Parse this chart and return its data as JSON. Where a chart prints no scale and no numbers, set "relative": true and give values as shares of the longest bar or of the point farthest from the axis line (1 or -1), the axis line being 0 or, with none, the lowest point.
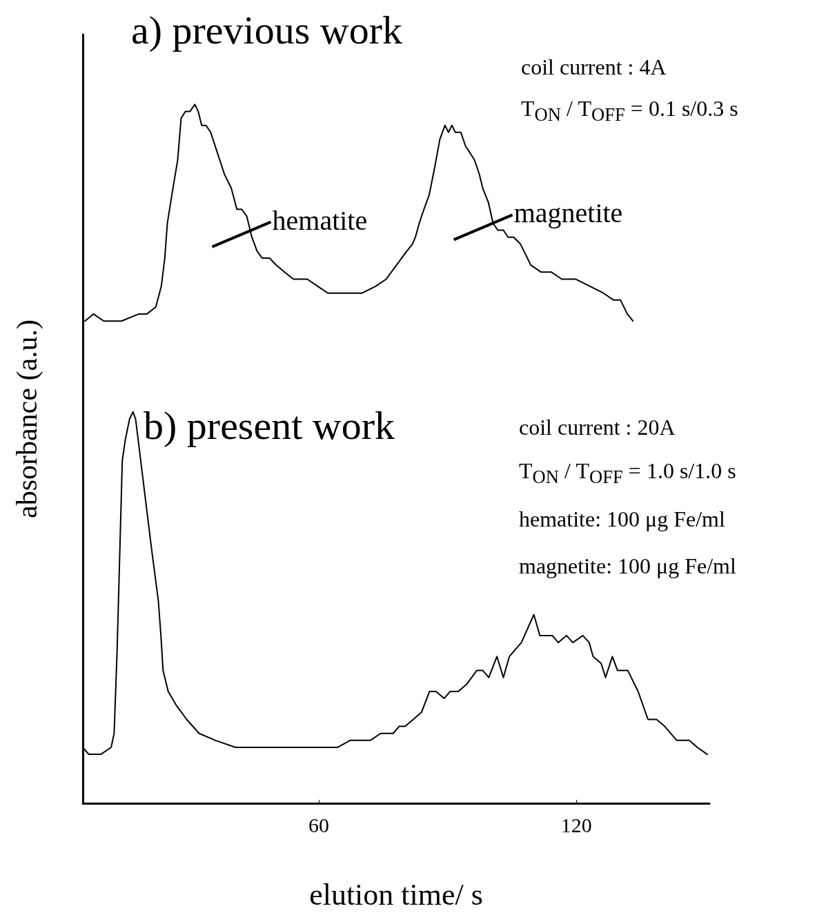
{
  "chart_data": {
    "type": "line",
    "relative": true,
    "xlabel": "elution time/ s",
    "ylabel": "absorbance (a.u.)",
    "xlim": [
      5,
      151
    ],
    "xticks": [
      60,
      120
    ],
    "tick_labels": "x",
    "grid": false,
    "marker": "none",
    "line_style": "solid",
    "annotations": [
      "a) previous work",
      "coil current : 4A",
      "T$_{ON}$ / T$_{OFF}$ = 0.1 s/0.3 s",
      "b) present work",
      "coil current : 20A",
      "T$_{ON}$ / T$_{OFF}$ = 1.0 s/1.0 s",
      "hematite: 100 μg Fe/ml",
      "magnetite: 100 μg Fe/ml",
      {
        "text": "hematite",
        "x": 44.8,
        "y": 0.82
      },
      {
        "text": "magnetite",
        "x": 101.1,
        "y": 0.83
      }
    ],
    "series": [
      {
        "color": "#000000",
        "x": [
          5.5,
          7.5,
          9.9,
          14.0,
          18.0,
          19.9,
          22.0,
          23.3,
          24.1,
          24.7,
          26.0,
          27.1,
          27.9,
          28.9,
          30.0,
          31.1,
          31.9,
          32.7,
          33.7,
          34.8,
          36.4,
          38.0,
          39.6,
          40.9,
          42.0,
          43.2,
          44.4,
          45.6,
          46.8,
          48.5,
          50.1,
          52.0,
          54.1,
          55.7,
          57.3,
          59.7,
          62.1,
          64.5,
          66.1,
          67.7,
          70.1,
          73.3,
          75.7,
          78.1,
          80.5,
          81.8,
          82.5,
          83.4,
          84.5,
          85.7,
          87.0,
          88.2,
          89.4,
          90.2,
          91.0,
          91.8,
          93.1,
          94.2,
          95.3,
          96.3,
          97.4,
          98.2,
          99.5,
          100.6,
          101.7,
          103.0,
          104.1,
          105.4,
          107.0,
          109.4,
          111.8,
          114.2,
          116.6,
          119.8,
          123.1,
          126.3,
          128.7,
          130.3,
          131.9,
          133.2
        ],
        "values": [
          0.69,
          0.7,
          0.69,
          0.69,
          0.7,
          0.7,
          0.71,
          0.74,
          0.78,
          0.83,
          0.88,
          0.92,
          0.98,
          0.99,
          0.99,
          1.0,
          0.99,
          0.97,
          0.97,
          0.96,
          0.93,
          0.9,
          0.88,
          0.85,
          0.85,
          0.84,
          0.81,
          0.79,
          0.78,
          0.78,
          0.77,
          0.76,
          0.75,
          0.75,
          0.75,
          0.74,
          0.73,
          0.73,
          0.73,
          0.73,
          0.73,
          0.74,
          0.75,
          0.77,
          0.79,
          0.8,
          0.81,
          0.83,
          0.85,
          0.87,
          0.91,
          0.95,
          0.97,
          0.96,
          0.97,
          0.96,
          0.96,
          0.94,
          0.93,
          0.92,
          0.9,
          0.88,
          0.86,
          0.83,
          0.82,
          0.82,
          0.81,
          0.81,
          0.8,
          0.77,
          0.76,
          0.76,
          0.75,
          0.75,
          0.74,
          0.73,
          0.72,
          0.72,
          0.7,
          0.69
        ]
      },
      {
        "color": "#000000",
        "x": [
          5.0,
          6.4,
          9.2,
          11.6,
          12.3,
          13.0,
          13.8,
          14.2,
          14.9,
          15.9,
          16.7,
          17.3,
          18.3,
          19.7,
          21.1,
          22.6,
          23.2,
          23.7,
          24.9,
          26.8,
          29.2,
          32.1,
          35.9,
          40.6,
          64.4,
          67.3,
          70.1,
          72.0,
          74.4,
          77.3,
          78.7,
          80.1,
          82.0,
          83.9,
          85.8,
          87.3,
          89.2,
          90.6,
          92.5,
          94.4,
          96.8,
          98.2,
          99.6,
          101.5,
          103.0,
          104.4,
          105.8,
          107.2,
          110.1,
          111.5,
          114.4,
          115.8,
          117.7,
          119.2,
          121.5,
          123.0,
          123.9,
          125.8,
          126.8,
          128.4,
          129.6,
          132.0,
          134.4,
          136.7,
          138.7,
          140.6,
          143.4,
          146.3,
          148.2,
          150.5
        ],
        "values": [
          0.08,
          0.07,
          0.07,
          0.08,
          0.1,
          0.22,
          0.4,
          0.49,
          0.52,
          0.55,
          0.56,
          0.55,
          0.5,
          0.43,
          0.36,
          0.29,
          0.24,
          0.19,
          0.16,
          0.14,
          0.12,
          0.1,
          0.09,
          0.08,
          0.08,
          0.09,
          0.09,
          0.09,
          0.1,
          0.1,
          0.11,
          0.11,
          0.12,
          0.13,
          0.16,
          0.16,
          0.15,
          0.16,
          0.16,
          0.17,
          0.19,
          0.19,
          0.18,
          0.21,
          0.18,
          0.21,
          0.22,
          0.23,
          0.27,
          0.24,
          0.24,
          0.23,
          0.24,
          0.23,
          0.24,
          0.23,
          0.21,
          0.2,
          0.18,
          0.21,
          0.19,
          0.19,
          0.16,
          0.12,
          0.12,
          0.11,
          0.09,
          0.09,
          0.08,
          0.07
        ]
      }
    ]
  }
}
